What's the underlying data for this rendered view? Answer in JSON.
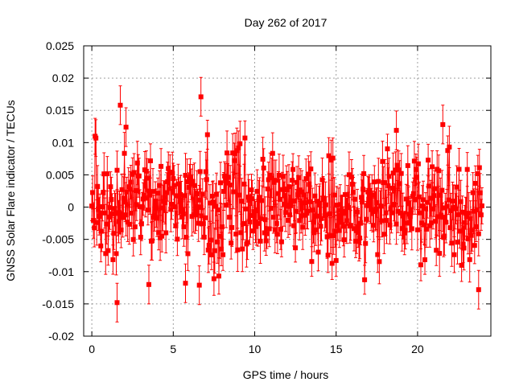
{
  "chart_data": {
    "type": "scatter",
    "title": "Day 262 of 2017",
    "xlabel": "GPS time / hours",
    "ylabel": "GNSS Solar Flare indicator / TECUs",
    "xlim": [
      -0.5,
      24.5
    ],
    "ylim": [
      -0.02,
      0.025
    ],
    "x_ticks": [
      0,
      5,
      10,
      15,
      20
    ],
    "x_tick_labels": [
      "0",
      "5",
      "10",
      "15",
      "20"
    ],
    "y_ticks": [
      -0.02,
      -0.015,
      -0.01,
      -0.005,
      0,
      0.005,
      0.01,
      0.015,
      0.02,
      0.025
    ],
    "y_tick_labels": [
      "-0.02",
      "-0.015",
      "-0.01",
      "-0.005",
      "0",
      "0.005",
      "0.01",
      "0.015",
      "0.02",
      "0.025"
    ],
    "grid": true,
    "legend": "none",
    "marker": "square",
    "error_bars": true,
    "color": "#ff0000",
    "series": [
      {
        "x_start": 0.0,
        "x_end": 23.95,
        "x_step": 0.05,
        "description": "values scatter roughly between -0.012 and 0.012 with error bars about +/-0.003",
        "outliers": [
          {
            "x": 1.75,
            "y": 0.0158
          },
          {
            "x": 6.7,
            "y": 0.0171
          },
          {
            "x": 2.1,
            "y": 0.0124
          },
          {
            "x": 1.55,
            "y": -0.0148
          },
          {
            "x": 23.75,
            "y": -0.0128
          },
          {
            "x": 21.55,
            "y": 0.0128
          },
          {
            "x": 18.7,
            "y": 0.0119
          },
          {
            "x": 5.75,
            "y": -0.0118
          },
          {
            "x": 6.6,
            "y": -0.0121
          },
          {
            "x": 3.5,
            "y": -0.012
          }
        ]
      }
    ]
  }
}
